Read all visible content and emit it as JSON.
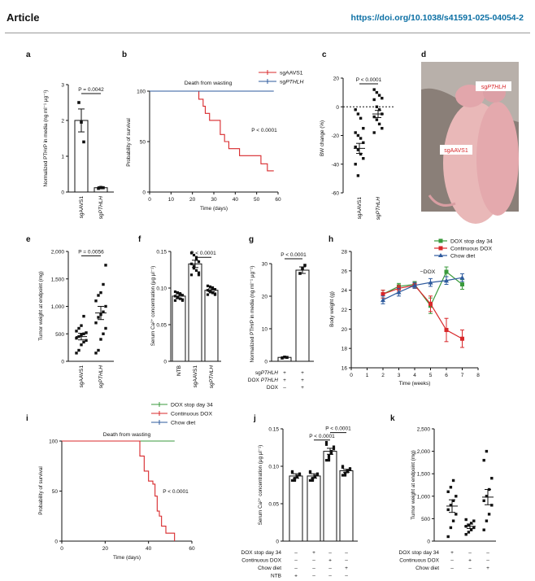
{
  "header": {
    "title": "Article",
    "doi": "https://doi.org/10.1038/s41591-025-04054-2"
  },
  "colors": {
    "black": "#111111",
    "red": "#d8282b",
    "blue": "#2e5b9e",
    "green": "#3a9a3c",
    "doi_blue": "#0b6fa4"
  },
  "photo_labels": {
    "left": "sgAAVS1",
    "right": "sgPTHLH"
  },
  "chart_data": [
    {
      "panel": "a",
      "type": "bar",
      "ylabel": "Normalized PTHrP in media (ng ml⁻¹ μg⁻¹)",
      "ylim": [
        0,
        3
      ],
      "yticks": [
        "0",
        "1",
        "2",
        "3"
      ],
      "categories": [
        "sgAAVS1",
        "sgPTHLH"
      ],
      "values": [
        2.0,
        0.12
      ],
      "errors": [
        0.32,
        0.03
      ],
      "points": [
        [
          2.5,
          1.95,
          1.4
        ],
        [
          0.1,
          0.13,
          0.12
        ]
      ],
      "pvalue": "P = 0.0042"
    },
    {
      "panel": "b",
      "type": "line",
      "xlabel": "Time (days)",
      "ylabel": "Probability of survival",
      "xlim": [
        0,
        60
      ],
      "ylim": [
        0,
        100
      ],
      "xticks": [
        "0",
        "10",
        "20",
        "30",
        "40",
        "50",
        "60"
      ],
      "yticks": [
        "0",
        "50",
        "100"
      ],
      "annotation": "Death from wasting",
      "pvalue": "P < 0.0001",
      "series": [
        {
          "name": "sgAAVS1",
          "color": "red",
          "x": [
            0,
            22,
            23,
            25,
            26,
            28,
            30,
            33,
            35,
            37,
            42,
            52,
            55,
            58
          ],
          "y": [
            100,
            100,
            92,
            85,
            78,
            71,
            71,
            57,
            50,
            43,
            36,
            28,
            21,
            21
          ]
        },
        {
          "name": "sgPTHLH",
          "color": "blue",
          "x": [
            0,
            58
          ],
          "y": [
            100,
            100
          ]
        }
      ]
    },
    {
      "panel": "c",
      "type": "scatter",
      "ylabel": "BW change (%)",
      "ylim": [
        -60,
        20
      ],
      "yticks": [
        "20",
        "0",
        "-20",
        "-40",
        "-60"
      ],
      "categories": [
        "sgAAVS1",
        "sgPTHLH"
      ],
      "means": [
        -29,
        -5
      ],
      "errors": [
        3.5,
        2.5
      ],
      "points": [
        [
          -2,
          -5,
          -8,
          -15,
          -18,
          -20,
          -22,
          -25,
          -28,
          -30,
          -33,
          -36,
          -40,
          -48
        ],
        [
          12,
          10,
          8,
          6,
          5,
          0,
          -2,
          -5,
          -7,
          -9,
          -12,
          -15,
          -18
        ]
      ],
      "pvalue": "P < 0.0001"
    },
    {
      "panel": "e",
      "type": "scatter",
      "ylabel": "Tumor weight at endpoint (mg)",
      "ylim": [
        0,
        2000
      ],
      "yticks": [
        "0",
        "500",
        "1,000",
        "1,500",
        "2,000"
      ],
      "categories": [
        "sgAAVS1",
        "sgPTHLH"
      ],
      "means": [
        450,
        880
      ],
      "errors": [
        60,
        120
      ],
      "points": [
        [
          150,
          200,
          300,
          350,
          380,
          420,
          450,
          480,
          500,
          520,
          550,
          600,
          650,
          820
        ],
        [
          150,
          200,
          400,
          500,
          600,
          700,
          800,
          850,
          900,
          1000,
          1100,
          1200,
          1250,
          1400,
          1750
        ]
      ],
      "pvalue": "P = 0.0056"
    },
    {
      "panel": "f",
      "type": "bar",
      "ylabel": "Serum Ca²⁺ concentration (μg μl⁻¹)",
      "ylim": [
        0,
        0.15
      ],
      "yticks": [
        "0",
        "0.05",
        "0.10",
        "0.15"
      ],
      "categories": [
        "NTB",
        "sgAAVS1",
        "sgPTHLH"
      ],
      "values": [
        0.089,
        0.133,
        0.097
      ],
      "errors": [
        0.003,
        0.005,
        0.002
      ],
      "pvalue": "P < 0.0001"
    },
    {
      "panel": "g",
      "type": "bar",
      "ylabel": "Normalized PTHrP in media (ng ml⁻¹ μg⁻¹)",
      "ylim": [
        0,
        30
      ],
      "yticks": [
        "0",
        "10",
        "20",
        "30"
      ],
      "values": [
        1.2,
        28
      ],
      "errors": [
        0.2,
        1.0
      ],
      "points": [
        [
          1.0,
          1.3,
          1.2
        ],
        [
          27,
          28.5,
          29.5
        ]
      ],
      "pvalue": "P < 0.0001",
      "conditions": [
        {
          "label": "sgPTHLH",
          "marks": [
            "+",
            "+"
          ]
        },
        {
          "label": "DOX PTHLH",
          "marks": [
            "+",
            "+"
          ]
        },
        {
          "label": "DOX",
          "marks": [
            "–",
            "+"
          ]
        }
      ]
    },
    {
      "panel": "h",
      "type": "line",
      "xlabel": "Time (weeks)",
      "ylabel": "Body weight (g)",
      "xlim": [
        0,
        8
      ],
      "ylim": [
        16,
        28
      ],
      "xticks": [
        "0",
        "1",
        "2",
        "3",
        "4",
        "5",
        "6",
        "7",
        "8"
      ],
      "yticks": [
        "16",
        "18",
        "20",
        "22",
        "24",
        "26",
        "28"
      ],
      "annotation": "−DOX",
      "legend": "top-right",
      "series": [
        {
          "name": "DOX stop day 34",
          "color": "green",
          "x": [
            2,
            3,
            4,
            5,
            6,
            7
          ],
          "y": [
            23.6,
            24.4,
            24.6,
            22.4,
            25.9,
            24.6
          ],
          "err": [
            0.4,
            0.3,
            0.3,
            0.8,
            0.5,
            0.5
          ]
        },
        {
          "name": "Continuous DOX",
          "color": "red",
          "x": [
            2,
            3,
            4,
            5,
            6,
            7
          ],
          "y": [
            23.6,
            24.2,
            24.5,
            22.6,
            19.9,
            19.0
          ],
          "err": [
            0.4,
            0.3,
            0.3,
            0.8,
            1.2,
            0.9
          ]
        },
        {
          "name": "Chow diet",
          "color": "blue",
          "x": [
            2,
            3,
            4,
            5,
            6,
            7
          ],
          "y": [
            23.0,
            23.8,
            24.5,
            24.8,
            25.0,
            25.3
          ],
          "err": [
            0.4,
            0.4,
            0.3,
            0.4,
            0.4,
            0.4
          ]
        }
      ]
    },
    {
      "panel": "i",
      "type": "line",
      "xlabel": "Time (days)",
      "ylabel": "Probability of survival",
      "xlim": [
        0,
        60
      ],
      "ylim": [
        0,
        100
      ],
      "xticks": [
        "0",
        "20",
        "40",
        "60"
      ],
      "yticks": [
        "0",
        "50",
        "100"
      ],
      "annotation": "Death from wasting",
      "pvalue": "P < 0.0001",
      "legend": "top",
      "series": [
        {
          "name": "DOX stop day 34",
          "color": "green",
          "x": [
            0,
            52
          ],
          "y": [
            100,
            100
          ]
        },
        {
          "name": "Continuous DOX",
          "color": "red",
          "x": [
            0,
            35,
            36,
            38,
            40,
            42,
            43,
            44,
            45,
            46,
            48,
            52
          ],
          "y": [
            100,
            100,
            85,
            70,
            60,
            57,
            45,
            30,
            25,
            15,
            8,
            0
          ]
        },
        {
          "name": "Chow diet",
          "color": "blue",
          "x": [
            0,
            52
          ],
          "y": [
            100,
            100
          ]
        }
      ]
    },
    {
      "panel": "j",
      "type": "bar",
      "ylabel": "Serum Ca²⁺ concentration (μg μl⁻¹)",
      "ylim": [
        0,
        0.15
      ],
      "yticks": [
        "0",
        "0.05",
        "0.10",
        "0.15"
      ],
      "values": [
        0.087,
        0.087,
        0.12,
        0.094
      ],
      "errors": [
        0.003,
        0.003,
        0.004,
        0.002
      ],
      "pvalues": [
        "P < 0.0001",
        "P < 0.0001"
      ],
      "conditions": [
        {
          "label": "DOX stop day 34",
          "marks": [
            "–",
            "+",
            "–",
            "–"
          ]
        },
        {
          "label": "Continuous DOX",
          "marks": [
            "–",
            "–",
            "+",
            "–"
          ]
        },
        {
          "label": "Chow diet",
          "marks": [
            "–",
            "–",
            "–",
            "+"
          ]
        },
        {
          "label": "NTB",
          "marks": [
            "+",
            "–",
            "–",
            "–"
          ]
        }
      ]
    },
    {
      "panel": "k",
      "type": "scatter",
      "ylabel": "Tumor weight at endpoint (mg)",
      "ylim": [
        0,
        2500
      ],
      "yticks": [
        "0",
        "500",
        "1,000",
        "1,500",
        "2,000",
        "2,500"
      ],
      "means": [
        780,
        330,
        980
      ],
      "errors": [
        140,
        50,
        170
      ],
      "points": [
        [
          100,
          300,
          450,
          600,
          700,
          800,
          900,
          1000,
          1100,
          1200,
          1350
        ],
        [
          150,
          200,
          250,
          300,
          330,
          360,
          400,
          450,
          480
        ],
        [
          250,
          450,
          600,
          800,
          900,
          1000,
          1150,
          1400,
          1800,
          2000
        ]
      ],
      "conditions": [
        {
          "label": "DOX stop day 34",
          "marks": [
            "+",
            "–",
            "–"
          ]
        },
        {
          "label": "Continuous DOX",
          "marks": [
            "–",
            "+",
            "–"
          ]
        },
        {
          "label": "Chow diet",
          "marks": [
            "–",
            "–",
            "+"
          ]
        }
      ]
    }
  ],
  "panel_letters": [
    "a",
    "b",
    "c",
    "d",
    "e",
    "f",
    "g",
    "h",
    "i",
    "j",
    "k"
  ]
}
